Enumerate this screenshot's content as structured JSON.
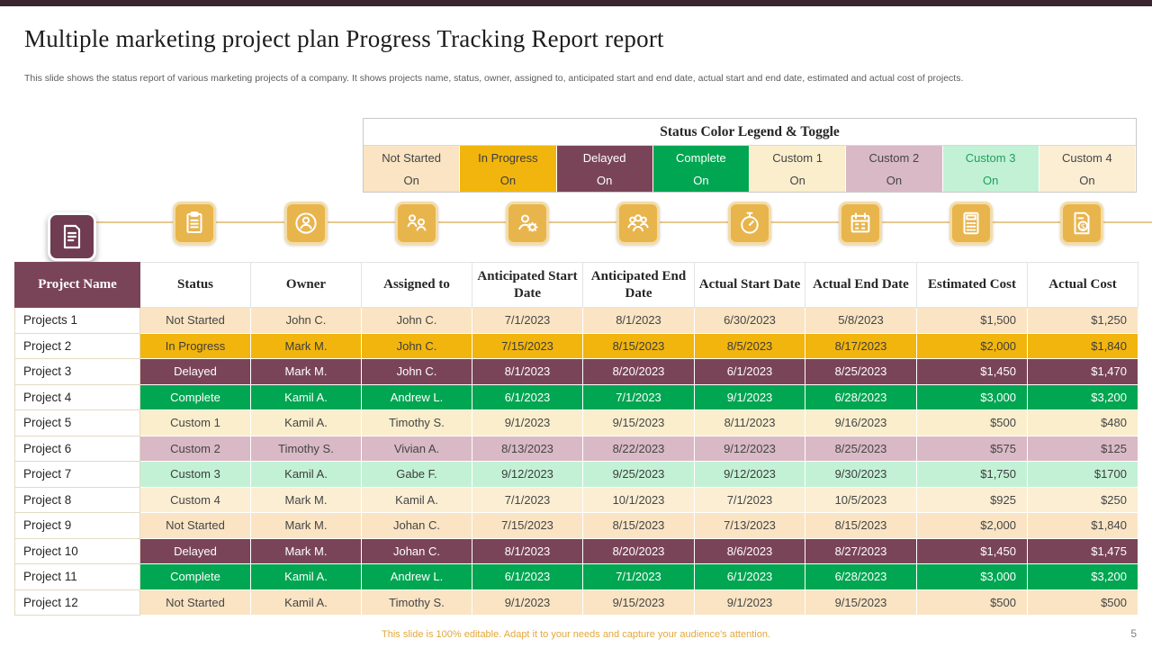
{
  "page": {
    "title": "Multiple marketing project plan Progress Tracking Report report",
    "subtitle": "This slide shows the status report of various marketing projects of a company. It shows projects name, status, owner, assigned to, anticipated start and end date, actual start and end date, estimated and actual cost of projects.",
    "footer": "This slide is 100% editable. Adapt it to your needs and capture your audience's attention.",
    "page_number": "5"
  },
  "colors": {
    "accent_maroon": "#7A4458",
    "accent_gold": "#E8B44C",
    "topbar": "#3A2430",
    "palette": {
      "not_started": {
        "bg": "#FAE4C3",
        "text": "#454545"
      },
      "in_progress": {
        "bg": "#F2B50D",
        "text": "#3d3d3d"
      },
      "delayed": {
        "bg": "#7A4458",
        "text": "#FFFFFF"
      },
      "complete": {
        "bg": "#00A651",
        "text": "#FFFFFF"
      },
      "custom1": {
        "bg": "#FAEECC",
        "text": "#454545"
      },
      "custom2": {
        "bg": "#D9B9C5",
        "text": "#454545"
      },
      "custom3": {
        "bg": "#C3F1D6",
        "text": "#3d3d3d"
      },
      "custom4": {
        "bg": "#FBEED3",
        "text": "#454545"
      }
    }
  },
  "legend": {
    "title": "Status Color Legend & Toggle",
    "items": [
      {
        "key": "not_started",
        "label": "Not Started",
        "toggle": "On"
      },
      {
        "key": "in_progress",
        "label": "In Progress",
        "toggle": "On"
      },
      {
        "key": "delayed",
        "label": "Delayed",
        "toggle": "On"
      },
      {
        "key": "complete",
        "label": "Complete",
        "toggle": "On"
      },
      {
        "key": "custom1",
        "label": "Custom 1",
        "toggle": "On"
      },
      {
        "key": "custom2",
        "label": "Custom 2",
        "toggle": "On"
      },
      {
        "key": "custom3",
        "label": "Custom 3",
        "toggle": "On",
        "label_color": "#1FA05C"
      },
      {
        "key": "custom4",
        "label": "Custom 4",
        "toggle": "On"
      }
    ]
  },
  "icons": [
    {
      "name": "report-icon"
    },
    {
      "name": "clipboard-icon"
    },
    {
      "name": "owner-sync-icon"
    },
    {
      "name": "people-link-icon"
    },
    {
      "name": "person-gear-icon"
    },
    {
      "name": "people-group-icon"
    },
    {
      "name": "stopwatch-icon"
    },
    {
      "name": "calendar-icon"
    },
    {
      "name": "calculator-icon"
    },
    {
      "name": "invoice-dollar-icon"
    }
  ],
  "table": {
    "columns": [
      "Project Name",
      "Status",
      "Owner",
      "Assigned to",
      "Anticipated Start Date",
      "Anticipated End Date",
      "Actual Start Date",
      "Actual End Date",
      "Estimated Cost",
      "Actual Cost"
    ],
    "rows": [
      {
        "name": "Projects 1",
        "status_key": "not_started",
        "cells": [
          "Not Started",
          "John C.",
          "John C.",
          "7/1/2023",
          "8/1/2023",
          "6/30/2023",
          "5/8/2023",
          "$1,500",
          "$1,250"
        ]
      },
      {
        "name": "Project 2",
        "status_key": "in_progress",
        "cells": [
          "In Progress",
          "Mark M.",
          "John C.",
          "7/15/2023",
          "8/15/2023",
          "8/5/2023",
          "8/17/2023",
          "$2,000",
          "$1,840"
        ]
      },
      {
        "name": "Project 3",
        "status_key": "delayed",
        "cells": [
          "Delayed",
          "Mark M.",
          "John C.",
          "8/1/2023",
          "8/20/2023",
          "6/1/2023",
          "8/25/2023",
          "$1,450",
          "$1,470"
        ]
      },
      {
        "name": "Project 4",
        "status_key": "complete",
        "cells": [
          "Complete",
          "Kamil A.",
          "Andrew L.",
          "6/1/2023",
          "7/1/2023",
          "9/1/2023",
          "6/28/2023",
          "$3,000",
          "$3,200"
        ]
      },
      {
        "name": "Project 5",
        "status_key": "custom1",
        "cells": [
          "Custom 1",
          "Kamil A.",
          "Timothy S.",
          "9/1/2023",
          "9/15/2023",
          "8/11/2023",
          "9/16/2023",
          "$500",
          "$480"
        ]
      },
      {
        "name": "Project 6",
        "status_key": "custom2",
        "cells": [
          "Custom 2",
          "Timothy S.",
          "Vivian A.",
          "8/13/2023",
          "8/22/2023",
          "9/12/2023",
          "8/25/2023",
          "$575",
          "$125"
        ]
      },
      {
        "name": "Project 7",
        "status_key": "custom3",
        "cells": [
          "Custom 3",
          "Kamil A.",
          "Gabe F.",
          "9/12/2023",
          "9/25/2023",
          "9/12/2023",
          "9/30/2023",
          "$1,750",
          "$1700"
        ]
      },
      {
        "name": "Project 8",
        "status_key": "custom4",
        "cells": [
          "Custom 4",
          "Mark M.",
          "Kamil A.",
          "7/1/2023",
          "10/1/2023",
          "7/1/2023",
          "10/5/2023",
          "$925",
          "$250"
        ]
      },
      {
        "name": "Project 9",
        "status_key": "not_started",
        "cells": [
          "Not Started",
          "Mark M.",
          "Johan C.",
          "7/15/2023",
          "8/15/2023",
          "7/13/2023",
          "8/15/2023",
          "$2,000",
          "$1,840"
        ]
      },
      {
        "name": "Project 10",
        "status_key": "delayed",
        "cells": [
          "Delayed",
          "Mark M.",
          "Johan C.",
          "8/1/2023",
          "8/20/2023",
          "8/6/2023",
          "8/27/2023",
          "$1,450",
          "$1,475"
        ]
      },
      {
        "name": "Project 11",
        "status_key": "complete",
        "cells": [
          "Complete",
          "Kamil A.",
          "Andrew L.",
          "6/1/2023",
          "7/1/2023",
          "6/1/2023",
          "6/28/2023",
          "$3,000",
          "$3,200"
        ]
      },
      {
        "name": "Project 12",
        "status_key": "not_started",
        "cells": [
          "Not Started",
          "Kamil A.",
          "Timothy S.",
          "9/1/2023",
          "9/15/2023",
          "9/1/2023",
          "9/15/2023",
          "$500",
          "$500"
        ]
      }
    ]
  }
}
